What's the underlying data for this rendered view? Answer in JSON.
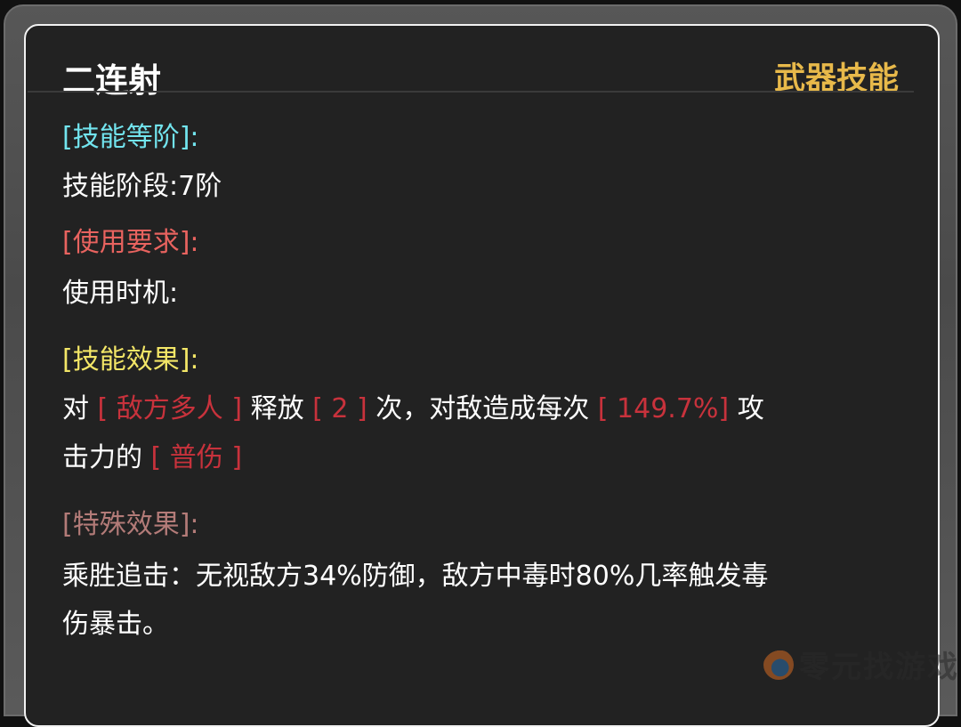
{
  "skill": {
    "name": "二连射",
    "type": "武器技能"
  },
  "sections": {
    "rank": {
      "header": "[技能等阶]:",
      "label": "技能阶段:",
      "value": "7阶"
    },
    "requirement": {
      "header": "[使用要求]:",
      "label": "使用时机:"
    },
    "effect": {
      "header": "[技能效果]:",
      "t1": "对",
      "v1": "[ 敌方多人 ]",
      "t2": "释放",
      "v2": "[ 2 ]",
      "t3": "次，对敌造成每次",
      "v3": "[ 149.7%]",
      "t4": "攻",
      "t5": "击力的",
      "v4": "[ 普伤 ]"
    },
    "special": {
      "header": "[特殊效果]:",
      "line1": "乘胜追击：无视敌方34%防御，敌方中毒时80%几率触发毒",
      "line2": "伤暴击。"
    }
  },
  "watermark": "零元找游戏",
  "colors": {
    "title": "#ffffff",
    "type": "#e8b94a",
    "rank_header": "#72e4ee",
    "requirement_header": "#e8635f",
    "effect_header": "#f3e667",
    "special_header": "#b37b78",
    "value": "#c8323c"
  }
}
